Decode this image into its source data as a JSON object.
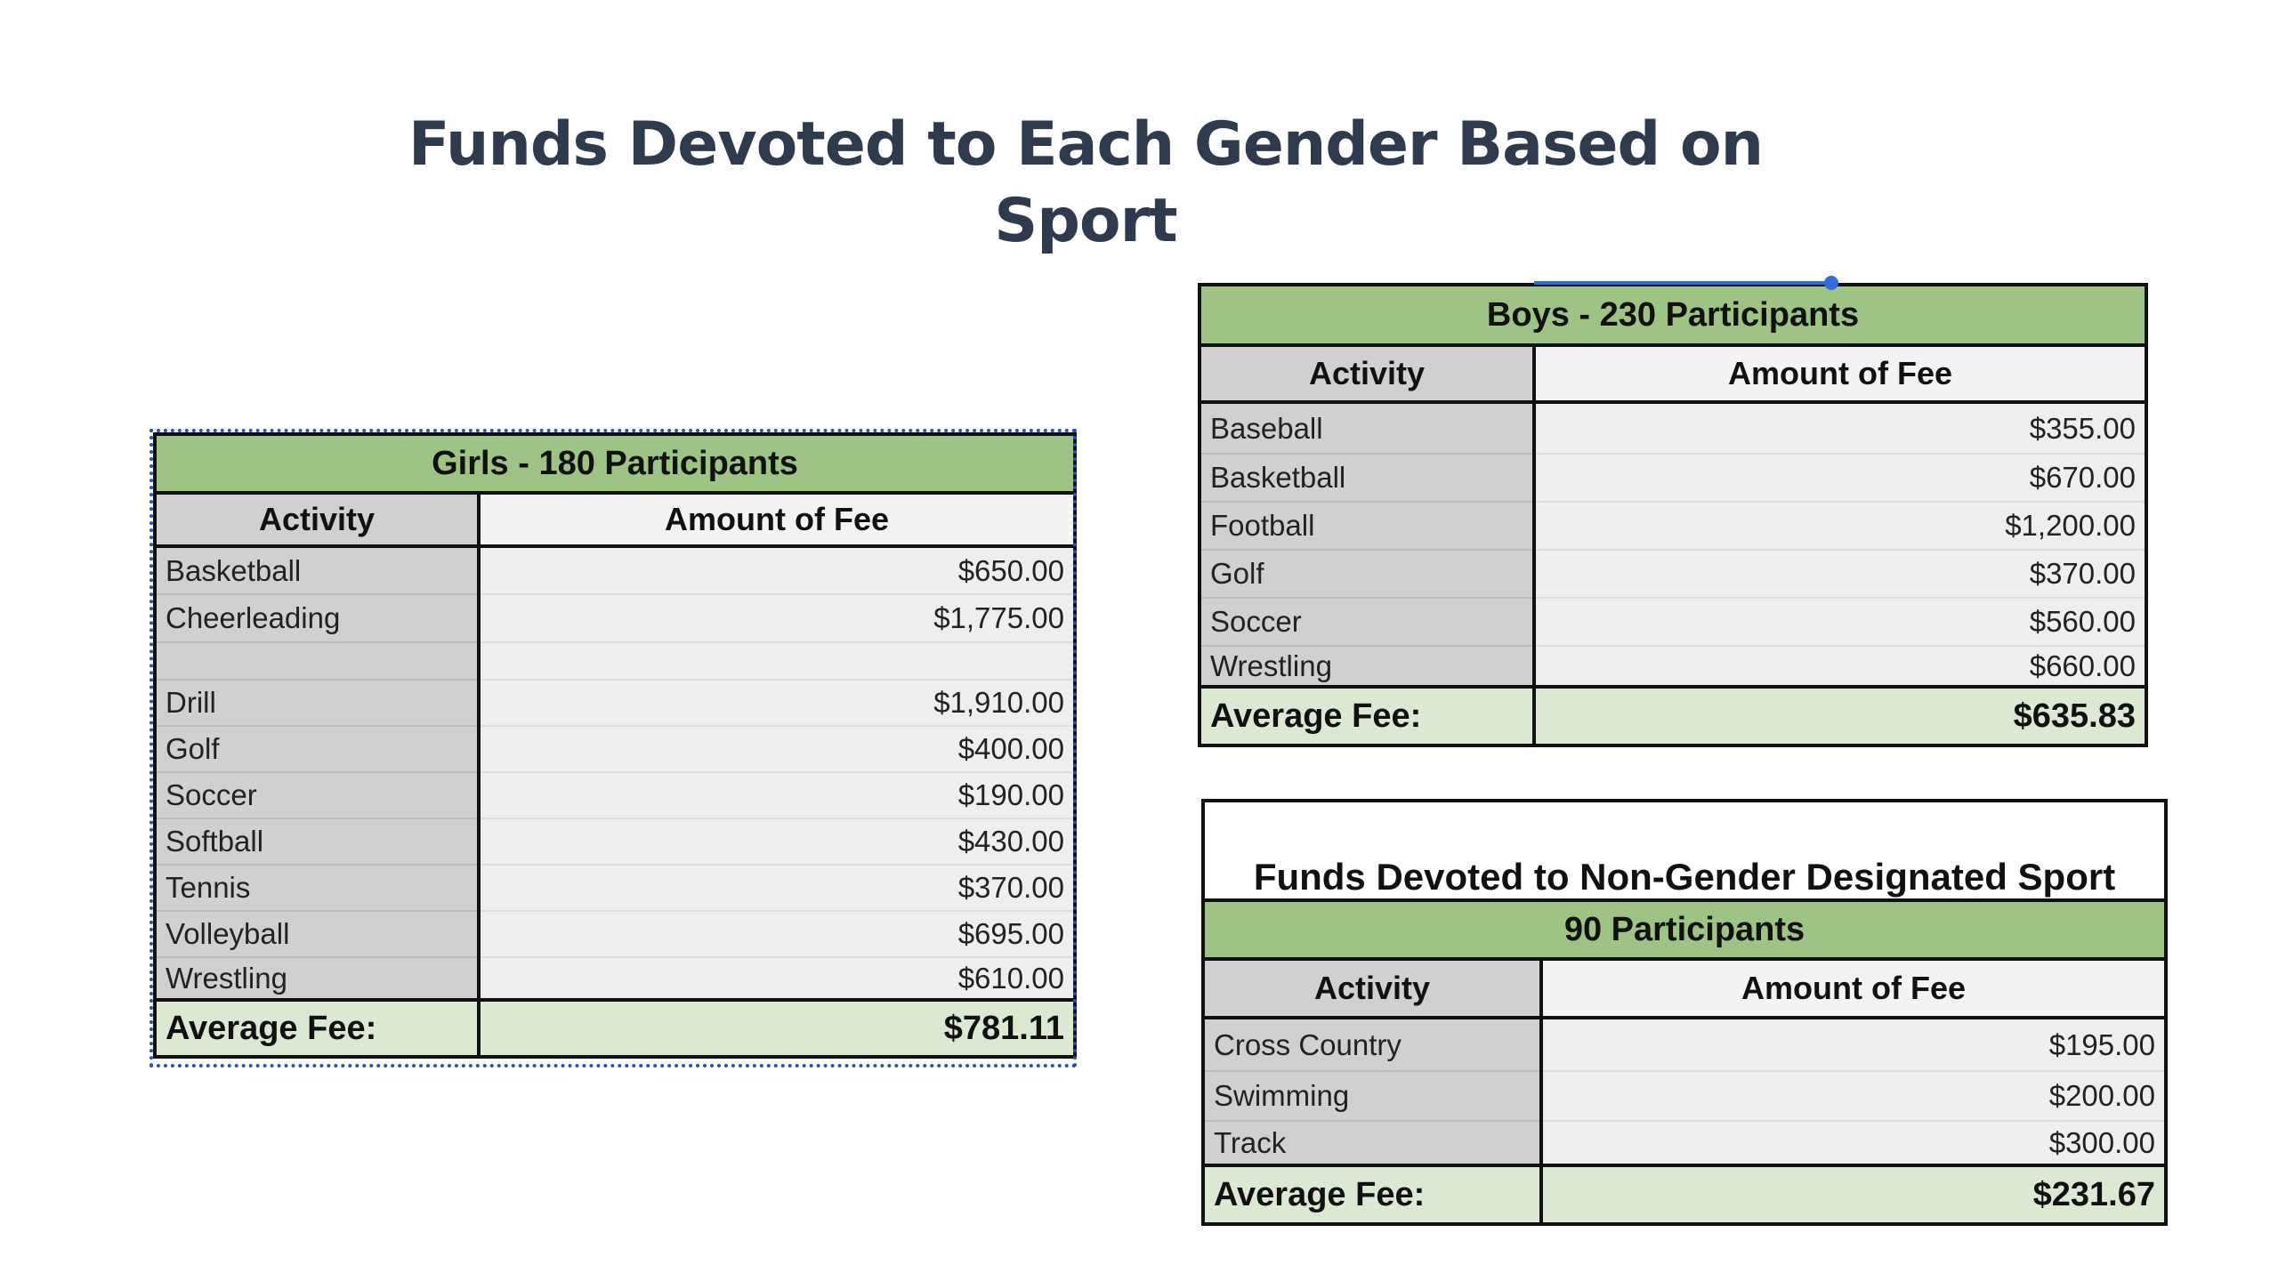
{
  "slide": {
    "title": "Funds Devoted to Each Gender Based on Sport"
  },
  "girls": {
    "header": "Girls - 180 Participants",
    "col_activity": "Activity",
    "col_fee": "Amount of Fee",
    "rows": [
      {
        "activity": "Basketball",
        "fee": "$650.00"
      },
      {
        "activity": "Cheerleading",
        "fee": "$1,775.00"
      },
      {
        "activity": "",
        "fee": ""
      },
      {
        "activity": "Drill",
        "fee": "$1,910.00"
      },
      {
        "activity": "Golf",
        "fee": "$400.00"
      },
      {
        "activity": "Soccer",
        "fee": "$190.00"
      },
      {
        "activity": "Softball",
        "fee": "$430.00"
      },
      {
        "activity": "Tennis",
        "fee": "$370.00"
      },
      {
        "activity": "Volleyball",
        "fee": "$695.00"
      },
      {
        "activity": "Wrestling",
        "fee": "$610.00"
      }
    ],
    "average_label": "Average Fee:",
    "average_value": "$781.11"
  },
  "boys": {
    "header": "Boys - 230 Participants",
    "col_activity": "Activity",
    "col_fee": "Amount of Fee",
    "rows": [
      {
        "activity": "Baseball",
        "fee": "$355.00"
      },
      {
        "activity": "Basketball",
        "fee": "$670.00"
      },
      {
        "activity": "Football",
        "fee": "$1,200.00"
      },
      {
        "activity": "Golf",
        "fee": "$370.00"
      },
      {
        "activity": "Soccer",
        "fee": "$560.00"
      },
      {
        "activity": "Wrestling",
        "fee": "$660.00"
      }
    ],
    "average_label": "Average Fee:",
    "average_value": "$635.83"
  },
  "nongender": {
    "title": "Funds Devoted to Non-Gender Designated Sport",
    "header": "90 Participants",
    "col_activity": "Activity",
    "col_fee": "Amount of Fee",
    "rows": [
      {
        "activity": "Cross Country",
        "fee": "$195.00"
      },
      {
        "activity": "Swimming",
        "fee": "$200.00"
      },
      {
        "activity": "Track",
        "fee": "$300.00"
      }
    ],
    "average_label": "Average Fee:",
    "average_value": "$231.67"
  },
  "colors": {
    "title": "#2e3a4e",
    "header_band": "#9dc485",
    "average_band": "#dbe9d2",
    "activity_column": "#d0d0d0",
    "selection": "#2f6fdc"
  }
}
